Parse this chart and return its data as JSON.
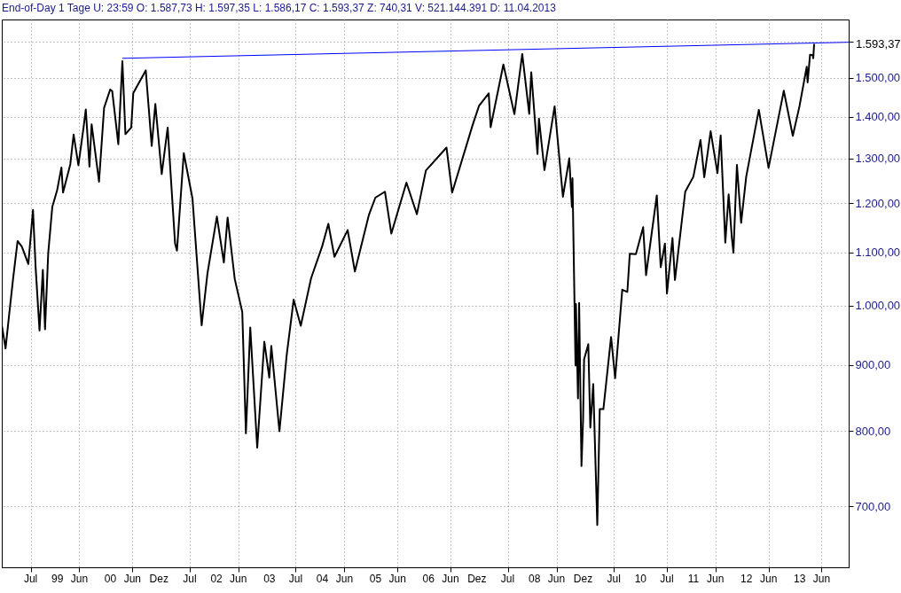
{
  "chart_data": {
    "type": "line",
    "title": "End-of-Day 1 Tage U: 23:59 O: 1.587,73 H: 1.597,35 L: 1.586,17 C: 1.593,37 Z: 740,31 V: 521.144.391 D: 11.04.2013",
    "log": "y",
    "grid": true,
    "xlim": [
      "1997-12-14",
      "2013-12-05"
    ],
    "xticks": [
      {
        "value": "1998-07",
        "label": "Jul"
      },
      {
        "value": "1999-01",
        "label": "99"
      },
      {
        "value": "1999-06",
        "label": "Jun"
      },
      {
        "value": "2000-01",
        "label": "00"
      },
      {
        "value": "2000-06",
        "label": "Jun"
      },
      {
        "value": "2000-12",
        "label": "Dez"
      },
      {
        "value": "2001-07",
        "label": "Jul"
      },
      {
        "value": "2002-01",
        "label": "02"
      },
      {
        "value": "2002-06",
        "label": "Jun"
      },
      {
        "value": "2003-01",
        "label": "03"
      },
      {
        "value": "2003-07",
        "label": "Jul"
      },
      {
        "value": "2004-01",
        "label": "04"
      },
      {
        "value": "2004-06",
        "label": "Jun"
      },
      {
        "value": "2005-01",
        "label": "05"
      },
      {
        "value": "2005-06",
        "label": "Jun"
      },
      {
        "value": "2006-01",
        "label": "06"
      },
      {
        "value": "2006-06",
        "label": "Jun"
      },
      {
        "value": "2006-12",
        "label": "Dez"
      },
      {
        "value": "2007-07",
        "label": "Jul"
      },
      {
        "value": "2008-01",
        "label": "08"
      },
      {
        "value": "2008-06",
        "label": "Jun"
      },
      {
        "value": "2008-12",
        "label": "Dez"
      },
      {
        "value": "2009-07",
        "label": "Jul"
      },
      {
        "value": "2010-01",
        "label": "10"
      },
      {
        "value": "2010-07",
        "label": "Jul"
      },
      {
        "value": "2011-01",
        "label": "11"
      },
      {
        "value": "2011-06",
        "label": "Jun"
      },
      {
        "value": "2012-01",
        "label": "12"
      },
      {
        "value": "2012-06",
        "label": "Jun"
      },
      {
        "value": "2013-01",
        "label": "13"
      },
      {
        "value": "2013-06",
        "label": "Jun"
      }
    ],
    "ylim": [
      628,
      1664
    ],
    "yticks": [
      {
        "value": 700,
        "label": "700,00"
      },
      {
        "value": 800,
        "label": "800,00"
      },
      {
        "value": 900,
        "label": "900,00"
      },
      {
        "value": 1000,
        "label": "1.000,00"
      },
      {
        "value": 1100,
        "label": "1.100,00"
      },
      {
        "value": 1200,
        "label": "1.200,00"
      },
      {
        "value": 1300,
        "label": "1.300,00"
      },
      {
        "value": 1400,
        "label": "1.400,00"
      },
      {
        "value": 1500,
        "label": "1.500,00"
      },
      {
        "value": 1600,
        "label": null
      }
    ],
    "annotations": [
      "1.593,37"
    ],
    "series": [
      {
        "color": "#000000",
        "x": [
          "1997-12-15",
          "1998-01-09",
          "1998-02-01",
          "1998-03-01",
          "1998-04-02",
          "1998-05-01",
          "1998-06-15",
          "1998-07-17",
          "1998-08-04",
          "1998-08-31",
          "1998-09-23",
          "1998-10-08",
          "1998-10-30",
          "1998-11-27",
          "1998-12-31",
          "1999-01-29",
          "1999-02-09",
          "1999-03-31",
          "1999-04-23",
          "1999-05-26",
          "1999-06-30",
          "1999-07-16",
          "1999-08-10",
          "1999-08-25",
          "1999-10-15",
          "1999-11-19",
          "1999-12-31",
          "2000-01-14",
          "2000-02-25",
          "2000-03-24",
          "2000-04-14",
          "2000-05-24",
          "2000-06-07",
          "2000-09-01",
          "2000-10-12",
          "2000-11-06",
          "2000-12-20",
          "2001-01-30",
          "2001-03-22",
          "2001-04-04",
          "2001-05-21",
          "2001-07-20",
          "2001-09-21",
          "2001-10-31",
          "2002-01-04",
          "2002-02-21",
          "2002-03-19",
          "2002-05-07",
          "2002-06-28",
          "2002-07-23",
          "2002-08-22",
          "2002-10-09",
          "2002-11-27",
          "2002-12-31",
          "2003-01-14",
          "2003-03-11",
          "2003-04-30",
          "2003-06-17",
          "2003-08-05",
          "2003-10-15",
          "2003-12-31",
          "2004-02-11",
          "2004-03-24",
          "2004-06-23",
          "2004-08-12",
          "2004-11-16",
          "2004-12-31",
          "2005-03-07",
          "2005-04-20",
          "2005-08-02",
          "2005-10-13",
          "2005-12-14",
          "2006-05-05",
          "2006-06-13",
          "2006-10-31",
          "2006-12-15",
          "2007-02-20",
          "2007-03-05",
          "2007-06-01",
          "2007-08-16",
          "2007-10-09",
          "2007-11-26",
          "2007-12-10",
          "2008-01-22",
          "2008-02-01",
          "2008-03-10",
          "2008-05-19",
          "2008-07-15",
          "2008-08-28",
          "2008-09-15",
          "2008-09-19",
          "2008-10-10",
          "2008-10-13",
          "2008-10-27",
          "2008-11-04",
          "2008-11-20",
          "2008-12-01",
          "2008-12-08",
          "2009-01-06",
          "2009-01-20",
          "2009-02-09",
          "2009-03-09",
          "2009-03-26",
          "2009-04-20",
          "2009-06-12",
          "2009-07-10",
          "2009-08-28",
          "2009-10-02",
          "2009-10-19",
          "2009-11-30",
          "2010-01-19",
          "2010-02-08",
          "2010-04-23",
          "2010-05-20",
          "2010-06-18",
          "2010-07-02",
          "2010-08-09",
          "2010-08-26",
          "2010-11-05",
          "2010-12-31",
          "2011-02-18",
          "2011-03-16",
          "2011-04-29",
          "2011-06-15",
          "2011-07-07",
          "2011-08-08",
          "2011-08-31",
          "2011-09-22",
          "2011-10-03",
          "2011-10-27",
          "2011-11-25",
          "2011-12-30",
          "2012-03-26",
          "2012-06-01",
          "2012-09-14",
          "2012-11-15",
          "2012-12-31",
          "2013-02-19",
          "2013-02-25",
          "2013-03-14",
          "2013-04-01",
          "2013-04-05",
          "2013-04-11"
        ],
        "values": [
          965,
          927,
          980,
          1047,
          1122,
          1111,
          1077,
          1186,
          1072,
          957,
          1066,
          959,
          1098,
          1192,
          1229,
          1279,
          1223,
          1286,
          1356,
          1284,
          1372,
          1418,
          1281,
          1381,
          1247,
          1422,
          1469,
          1465,
          1333,
          1545,
          1357,
          1373,
          1460,
          1520,
          1329,
          1432,
          1264,
          1373,
          1117,
          1103,
          1312,
          1210,
          966,
          1059,
          1172,
          1080,
          1170,
          1049,
          989,
          797,
          962,
          777,
          938,
          880,
          931,
          800,
          916,
          1011,
          965,
          1050,
          1112,
          1157,
          1091,
          1144,
          1063,
          1175,
          1212,
          1225,
          1137,
          1245,
          1177,
          1272,
          1325,
          1223,
          1378,
          1427,
          1459,
          1374,
          1536,
          1406,
          1565,
          1407,
          1515,
          1310,
          1395,
          1273,
          1426,
          1214,
          1300,
          1192,
          1255,
          899,
          1003,
          848,
          1005,
          752,
          816,
          909,
          934,
          805,
          870,
          677,
          832,
          832,
          946,
          879,
          1029,
          1025,
          1097,
          1096,
          1150,
          1056,
          1217,
          1071,
          1117,
          1022,
          1128,
          1047,
          1225,
          1258,
          1343,
          1257,
          1364,
          1266,
          1354,
          1119,
          1219,
          1129,
          1099,
          1285,
          1159,
          1258,
          1417,
          1278,
          1466,
          1353,
          1426,
          1530,
          1488,
          1563,
          1562,
          1553,
          1593
        ]
      },
      {
        "color": "#0000ff",
        "x": [
          "2000-03-24",
          "2013-12-05"
        ],
        "values": [
          1553,
          1598
        ]
      }
    ]
  }
}
